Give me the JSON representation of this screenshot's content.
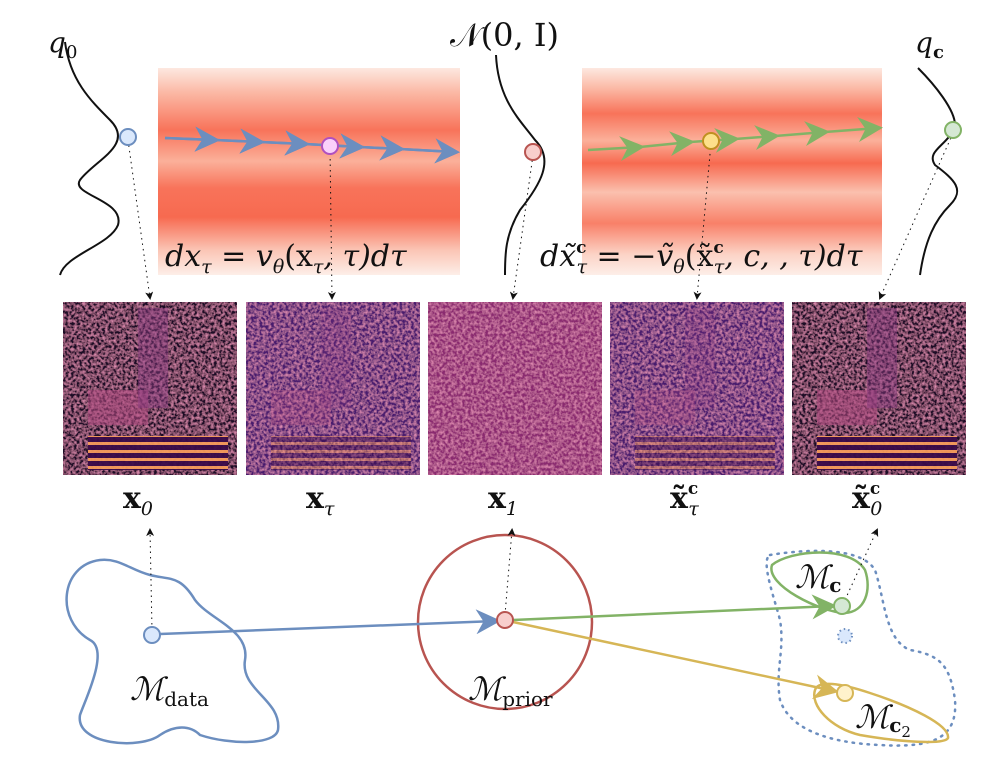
{
  "top": {
    "q0": {
      "main": "q",
      "sub": "0"
    },
    "prior": "𝒩(0, I)",
    "qc": {
      "main": "q",
      "sub": "c"
    },
    "eq_forward": "dx",
    "eq_forward_sub": "τ",
    "eq_forward_rest": " = v",
    "eq_forward_theta": "θ",
    "eq_forward_args": "(x",
    "eq_forward_args_sub": "τ",
    "eq_forward_tail": ", τ)dτ",
    "eq_reverse": "dx̃",
    "eq_reverse_sup": "c",
    "eq_reverse_sub": "τ",
    "eq_reverse_rest": " = −ṽ",
    "eq_reverse_theta": "θ",
    "eq_reverse_args": "(x̃",
    "eq_reverse_args_sup": "c",
    "eq_reverse_args_sub": "τ",
    "eq_reverse_tail": ", c, , τ)dτ"
  },
  "spectrograms": [
    {
      "main": "x",
      "sub": "0",
      "sup": ""
    },
    {
      "main": "x",
      "sub": "τ",
      "sup": ""
    },
    {
      "main": "x",
      "sub": "1",
      "sup": ""
    },
    {
      "main": "x̃",
      "sub": "τ",
      "sup": "c"
    },
    {
      "main": "x̃",
      "sub": "0",
      "sup": "c"
    }
  ],
  "manifolds": {
    "data": {
      "main": "ℳ",
      "sub": "data"
    },
    "prior": {
      "main": "ℳ",
      "sub": "prior"
    },
    "c": {
      "main": "ℳ",
      "sub": "c"
    },
    "c2": {
      "main": "ℳ",
      "sub": "c",
      "sub2": "2"
    }
  },
  "colors": {
    "blue": "#6c8ebf",
    "red": "#b85450",
    "green": "#82b366",
    "yellow": "#d6b656",
    "pink": "#e070e0",
    "heat": "#f8735a"
  }
}
